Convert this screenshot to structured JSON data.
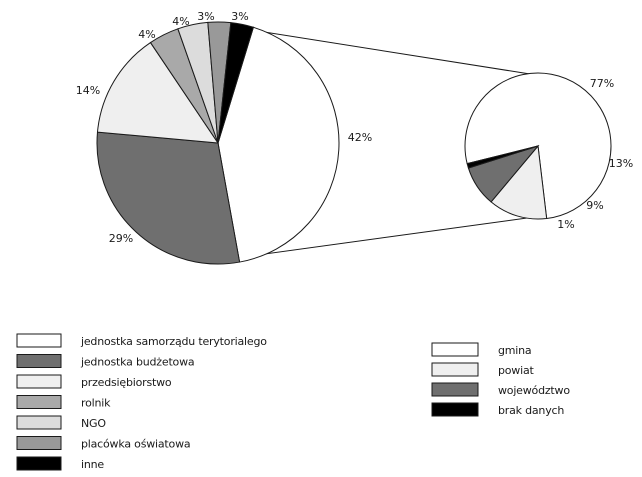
{
  "colors": {
    "white": "#ffffff",
    "dark_gray": "#6f6f6f",
    "light_gray": "#efefef",
    "medium_gray": "#a9a9a9",
    "pale_gray": "#dcdcdc",
    "mid_gray": "#999999",
    "black": "#000000",
    "outline": "#1a1a1a"
  },
  "chart_data": [
    {
      "type": "pie",
      "slices": [
        {
          "label": "jednostka samorządu terytorialego",
          "value": 42,
          "value_label": "42%",
          "color": "#ffffff"
        },
        {
          "label": "jednostka budżetowa",
          "value": 29,
          "value_label": "29%",
          "color": "#6f6f6f"
        },
        {
          "label": "przedsiębiorstwo",
          "value": 14,
          "value_label": "14%",
          "color": "#efefef"
        },
        {
          "label": "rolnik",
          "value": 4,
          "value_label": "4%",
          "color": "#a9a9a9"
        },
        {
          "label": "NGO",
          "value": 4,
          "value_label": "4%",
          "color": "#dcdcdc"
        },
        {
          "label": "placówka oświatowa",
          "value": 3,
          "value_label": "3%",
          "color": "#999999"
        },
        {
          "label": "inne",
          "value": 3,
          "value_label": "3%",
          "color": "#000000"
        }
      ]
    },
    {
      "type": "pie",
      "slices": [
        {
          "label": "gmina",
          "value": 77,
          "value_label": "77%",
          "color": "#ffffff"
        },
        {
          "label": "powiat",
          "value": 13,
          "value_label": "13%",
          "color": "#efefef"
        },
        {
          "label": "województwo",
          "value": 9,
          "value_label": "9%",
          "color": "#6f6f6f"
        },
        {
          "label": "brak danych",
          "value": 1,
          "value_label": "1%",
          "color": "#000000"
        }
      ]
    }
  ]
}
